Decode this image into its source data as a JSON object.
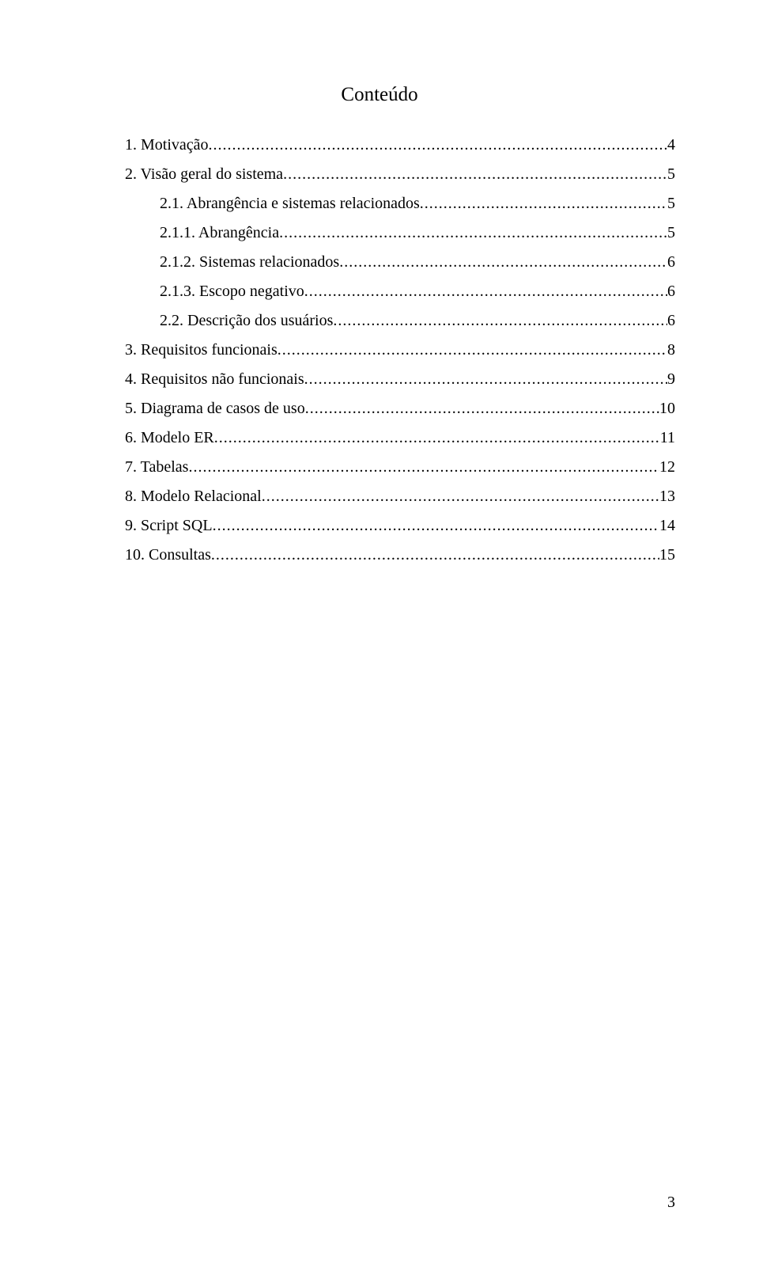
{
  "title": "Conteúdo",
  "toc": [
    {
      "num": "1.",
      "label": "Motivação",
      "page": "4",
      "sub": false
    },
    {
      "num": "2.",
      "label": "Visão geral do sistema",
      "page": "5",
      "sub": false
    },
    {
      "num": "2.1.",
      "label": "Abrangência e sistemas relacionados",
      "page": "5",
      "sub": true
    },
    {
      "num": "2.1.1.",
      "label": "Abrangência",
      "page": "5",
      "sub": true
    },
    {
      "num": "2.1.2.",
      "label": "Sistemas relacionados",
      "page": "6",
      "sub": true
    },
    {
      "num": "2.1.3.",
      "label": "Escopo negativo",
      "page": "6",
      "sub": true
    },
    {
      "num": "2.2.",
      "label": "Descrição dos usuários",
      "page": "6",
      "sub": true
    },
    {
      "num": "3.",
      "label": "Requisitos funcionais",
      "page": "8",
      "sub": false
    },
    {
      "num": "4.",
      "label": "Requisitos não funcionais",
      "page": "9",
      "sub": false
    },
    {
      "num": "5.",
      "label": "Diagrama de casos de uso",
      "page": "10",
      "sub": false
    },
    {
      "num": "6.",
      "label": "Modelo ER",
      "page": "11",
      "sub": false
    },
    {
      "num": "7.",
      "label": "Tabelas",
      "page": "12",
      "sub": false
    },
    {
      "num": "8.",
      "label": "Modelo Relacional",
      "page": "13",
      "sub": false
    },
    {
      "num": "9.",
      "label": "Script SQL",
      "page": "14",
      "sub": false
    },
    {
      "num": "10.",
      "label": "Consultas",
      "page": "15",
      "sub": false
    }
  ],
  "page_number": "3"
}
